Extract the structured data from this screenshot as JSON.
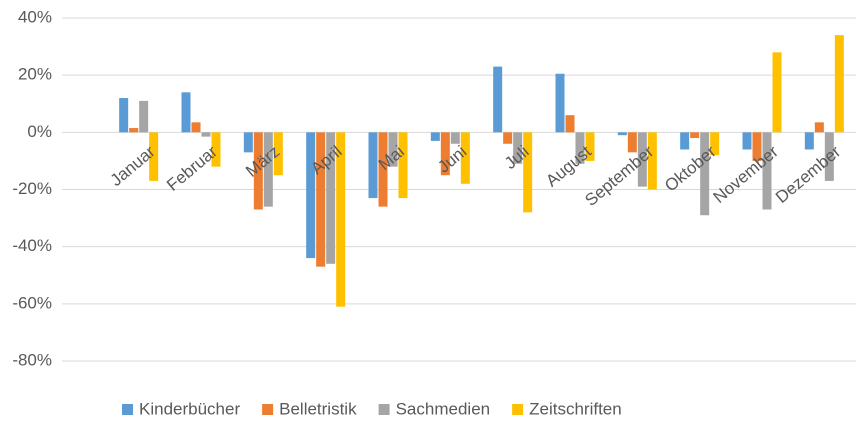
{
  "chart_data": {
    "type": "bar",
    "categories": [
      "Januar",
      "Februar",
      "März",
      "April",
      "Mai",
      "Juni",
      "Juli",
      "August",
      "September",
      "Oktober",
      "November",
      "Dezember"
    ],
    "series": [
      {
        "name": "Kinderbücher",
        "color": "#5b9bd5",
        "values": [
          12,
          14,
          -7,
          -44,
          -23,
          -3,
          23,
          20.5,
          -1,
          -6,
          -6,
          -6
        ]
      },
      {
        "name": "Belletristik",
        "color": "#ed7d31",
        "values": [
          1.5,
          3.5,
          -27,
          -47,
          -26,
          -15,
          -4,
          6,
          -7,
          -2,
          -10,
          3.5
        ]
      },
      {
        "name": "Sachmedien",
        "color": "#a5a5a5",
        "values": [
          11,
          -1.5,
          -26,
          -46,
          -12,
          -4,
          -11,
          -11,
          -19,
          -29,
          -27,
          -17
        ]
      },
      {
        "name": "Zeitschriften",
        "color": "#ffc000",
        "values": [
          -17,
          -12,
          -15,
          -61,
          -23,
          -18,
          -28,
          -10,
          -20,
          -8,
          28,
          34
        ]
      }
    ],
    "ylim": [
      -80,
      40
    ],
    "yticks": [
      {
        "value": -80,
        "label": "-80%"
      },
      {
        "value": -60,
        "label": "-60%"
      },
      {
        "value": -40,
        "label": "-40%"
      },
      {
        "value": -20,
        "label": "-20%"
      },
      {
        "value": 0,
        "label": "0%"
      },
      {
        "value": 20,
        "label": "20%"
      },
      {
        "value": 40,
        "label": "40%"
      }
    ],
    "grid": true,
    "legend": "bottom"
  }
}
